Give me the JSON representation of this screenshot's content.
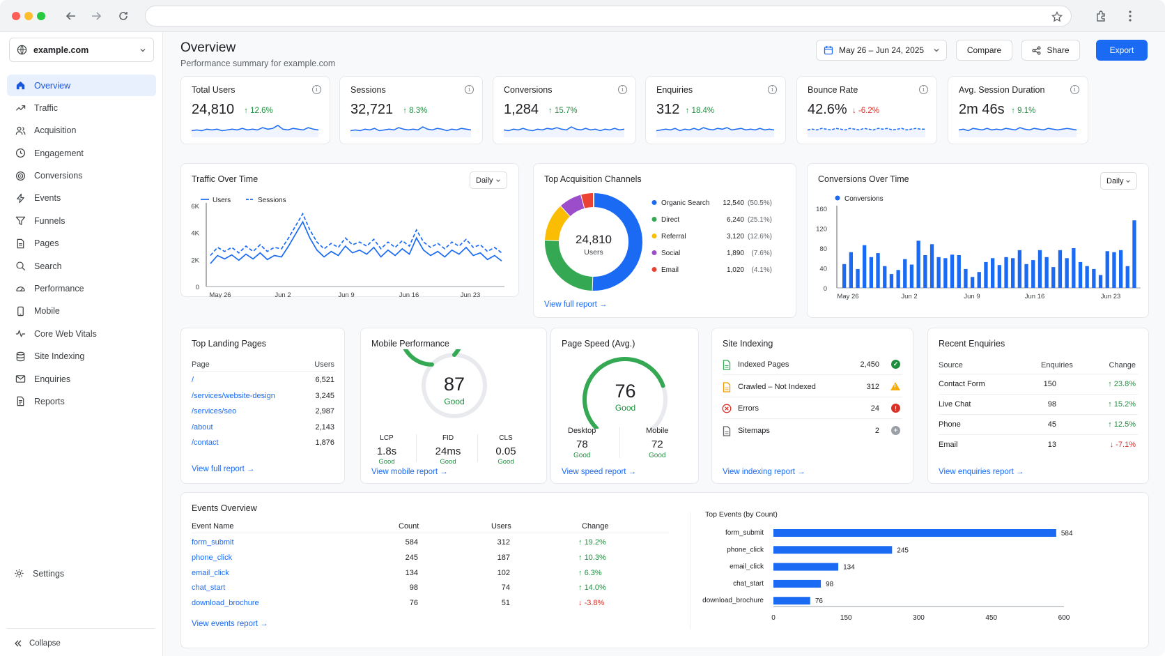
{
  "browser": {
    "url": ""
  },
  "sidebar": {
    "site": "example.com",
    "items": [
      {
        "label": "Overview",
        "icon": "home-icon"
      },
      {
        "label": "Traffic",
        "icon": "trend-icon"
      },
      {
        "label": "Acquisition",
        "icon": "users-icon"
      },
      {
        "label": "Engagement",
        "icon": "clock-icon"
      },
      {
        "label": "Conversions",
        "icon": "target-icon"
      },
      {
        "label": "Events",
        "icon": "bolt-icon"
      },
      {
        "label": "Funnels",
        "icon": "funnel-icon"
      },
      {
        "label": "Pages",
        "icon": "page-icon"
      },
      {
        "label": "Search",
        "icon": "search-icon"
      },
      {
        "label": "Performance",
        "icon": "gauge-icon"
      },
      {
        "label": "Mobile",
        "icon": "mobile-icon"
      },
      {
        "label": "Core Web Vitals",
        "icon": "pulse-icon"
      },
      {
        "label": "Site Indexing",
        "icon": "database-icon"
      },
      {
        "label": "Enquiries",
        "icon": "mail-icon"
      },
      {
        "label": "Reports",
        "icon": "report-icon"
      }
    ],
    "settings": "Settings",
    "collapse": "Collapse"
  },
  "header": {
    "title": "Overview",
    "subtitle": "Performance summary for example.com",
    "date_range": "May 26 – Jun 24, 2025",
    "compare": "Compare",
    "share": "Share",
    "export": "Export"
  },
  "kpis": [
    {
      "label": "Total Users",
      "value": "24,810",
      "change": "12.6%",
      "dir": "up"
    },
    {
      "label": "Sessions",
      "value": "32,721",
      "change": "8.3%",
      "dir": "up"
    },
    {
      "label": "Conversions",
      "value": "1,284",
      "change": "15.7%",
      "dir": "up"
    },
    {
      "label": "Enquiries",
      "value": "312",
      "change": "18.4%",
      "dir": "up"
    },
    {
      "label": "Bounce Rate",
      "value": "42.6%",
      "change": "-6.2%",
      "dir": "down"
    },
    {
      "label": "Avg. Session Duration",
      "value": "2m 46s",
      "change": "9.1%",
      "dir": "up"
    }
  ],
  "traffic": {
    "title": "Traffic Over Time",
    "dropdown": "Daily"
  },
  "channels": {
    "title": "Top Acquisition Channels",
    "total": "24,810",
    "total_label": "Users",
    "link": "View full report →"
  },
  "conversions_chart": {
    "title": "Conversions Over Time",
    "dropdown": "Daily"
  },
  "landing": {
    "title": "Top Landing Pages",
    "col_page": "Page",
    "col_users": "Users",
    "rows": [
      {
        "page": "/",
        "users": "6,521"
      },
      {
        "page": "/services/website-design",
        "users": "3,245"
      },
      {
        "page": "/services/seo",
        "users": "2,987"
      },
      {
        "page": "/about",
        "users": "2,143"
      },
      {
        "page": "/contact",
        "users": "1,876"
      }
    ],
    "link": "View full report →"
  },
  "mobile": {
    "title": "Mobile Performance",
    "score": "87",
    "score_value": 87,
    "status": "Good",
    "metrics": [
      {
        "label": "LCP",
        "value": "1.8s",
        "status": "Good"
      },
      {
        "label": "FID",
        "value": "24ms",
        "status": "Good"
      },
      {
        "label": "CLS",
        "value": "0.05",
        "status": "Good"
      }
    ],
    "link": "View mobile report →"
  },
  "speed": {
    "title": "Page Speed (Avg.)",
    "score": "76",
    "score_value": 76,
    "status": "Good",
    "desktop_label": "Desktop",
    "desktop": "78",
    "desktop_status": "Good",
    "mobile_label": "Mobile",
    "mobile": "72",
    "mobile_status": "Good",
    "link": "View speed report →"
  },
  "indexing": {
    "title": "Site Indexing",
    "rows": [
      {
        "label": "Indexed Pages",
        "value": "2,450",
        "status": "ok"
      },
      {
        "label": "Crawled – Not Indexed",
        "value": "312",
        "status": "warn"
      },
      {
        "label": "Errors",
        "value": "24",
        "status": "error"
      },
      {
        "label": "Sitemaps",
        "value": "2",
        "status": "info"
      }
    ],
    "link": "View indexing report →"
  },
  "enquiries": {
    "title": "Recent Enquiries",
    "col_source": "Source",
    "col_enq": "Enquiries",
    "col_change": "Change",
    "rows": [
      {
        "source": "Contact Form",
        "count": "150",
        "change": "23.8%",
        "dir": "up"
      },
      {
        "source": "Live Chat",
        "count": "98",
        "change": "15.2%",
        "dir": "up"
      },
      {
        "source": "Phone",
        "count": "45",
        "change": "12.5%",
        "dir": "up"
      },
      {
        "source": "Email",
        "count": "13",
        "change": "-7.1%",
        "dir": "down"
      }
    ],
    "link": "View enquiries report →"
  },
  "events": {
    "title": "Events Overview",
    "col_name": "Event Name",
    "col_count": "Count",
    "col_users": "Users",
    "col_change": "Change",
    "rows": [
      {
        "name": "form_submit",
        "count": "584",
        "users": "312",
        "change": "19.2%",
        "dir": "up"
      },
      {
        "name": "phone_click",
        "count": "245",
        "users": "187",
        "change": "10.3%",
        "dir": "up"
      },
      {
        "name": "email_click",
        "count": "134",
        "users": "102",
        "change": "6.3%",
        "dir": "up"
      },
      {
        "name": "chat_start",
        "count": "98",
        "users": "74",
        "change": "14.0%",
        "dir": "up"
      },
      {
        "name": "download_brochure",
        "count": "76",
        "users": "51",
        "change": "-3.8%",
        "dir": "down"
      }
    ],
    "link": "View events report →"
  },
  "chart_data": [
    {
      "type": "line",
      "title": "Traffic Over Time",
      "x_ticks": [
        "May 26",
        "Jun 2",
        "Jun 9",
        "Jun 16",
        "Jun 23"
      ],
      "ylim": [
        0,
        6000
      ],
      "y_ticks": [
        "0",
        "2K",
        "4K",
        "6K"
      ],
      "legend": "top-left",
      "series": [
        {
          "name": "Users",
          "style": "solid",
          "color": "#1a6af3",
          "values": [
            1700,
            2300,
            2050,
            2350,
            1950,
            2400,
            2050,
            2500,
            2000,
            2300,
            2200,
            3000,
            3900,
            4800,
            3600,
            2700,
            2200,
            2600,
            2300,
            3000,
            2500,
            2700,
            2400,
            2900,
            2200,
            2700,
            2300,
            2800,
            2400,
            3600,
            2700,
            2300,
            2600,
            2200,
            2700,
            2400,
            2900,
            2300,
            2500,
            2000,
            2300,
            1900
          ]
        },
        {
          "name": "Sessions",
          "style": "dashed",
          "color": "#1a6af3",
          "values": [
            2300,
            2900,
            2600,
            2900,
            2500,
            3000,
            2600,
            3100,
            2600,
            2900,
            2800,
            3600,
            4500,
            5400,
            4200,
            3300,
            2800,
            3200,
            2900,
            3600,
            3100,
            3300,
            3000,
            3500,
            2800,
            3300,
            2900,
            3400,
            3000,
            4200,
            3300,
            2900,
            3200,
            2800,
            3300,
            3000,
            3500,
            2900,
            3100,
            2600,
            2900,
            2500
          ]
        }
      ]
    },
    {
      "type": "pie",
      "title": "Top Acquisition Channels",
      "slices": [
        {
          "label": "Organic Search",
          "value": 12540,
          "value_text": "12,540",
          "pct": "(50.5%)",
          "color": "#1a6af3"
        },
        {
          "label": "Direct",
          "value": 6240,
          "value_text": "6,240",
          "pct": "(25.1%)",
          "color": "#34a853"
        },
        {
          "label": "Referral",
          "value": 3120,
          "value_text": "3,120",
          "pct": "(12.6%)",
          "color": "#fbbc04"
        },
        {
          "label": "Social",
          "value": 1890,
          "value_text": "1,890",
          "pct": "(7.6%)",
          "color": "#9b4dca"
        },
        {
          "label": "Email",
          "value": 1020,
          "value_text": "1,020",
          "pct": "(4.1%)",
          "color": "#ea4335"
        }
      ]
    },
    {
      "type": "bar",
      "title": "Conversions Over Time",
      "x_ticks": [
        "May 26",
        "Jun 2",
        "Jun 9",
        "Jun 16",
        "Jun 23"
      ],
      "ylim": [
        0,
        160
      ],
      "y_ticks": [
        "0",
        "40",
        "80",
        "120",
        "160"
      ],
      "legend": "top-left",
      "series": [
        {
          "name": "Conversions",
          "color": "#1a6af3",
          "values": [
            48,
            72,
            38,
            86,
            62,
            70,
            44,
            28,
            36,
            58,
            47,
            95,
            66,
            88,
            62,
            60,
            67,
            66,
            38,
            22,
            32,
            52,
            60,
            46,
            62,
            60,
            76,
            48,
            56,
            76,
            62,
            42,
            76,
            60,
            80,
            52,
            44,
            38,
            26,
            74,
            72,
            76,
            44,
            136
          ]
        }
      ]
    },
    {
      "type": "bar",
      "orientation": "horizontal",
      "title": "Top Events (by Count)",
      "categories": [
        "form_submit",
        "phone_click",
        "email_click",
        "chat_start",
        "download_brochure"
      ],
      "values": [
        584,
        245,
        134,
        98,
        76
      ],
      "xlim": [
        0,
        600
      ],
      "x_ticks": [
        "0",
        "150",
        "300",
        "450",
        "600"
      ],
      "color": "#1a6af3"
    }
  ]
}
